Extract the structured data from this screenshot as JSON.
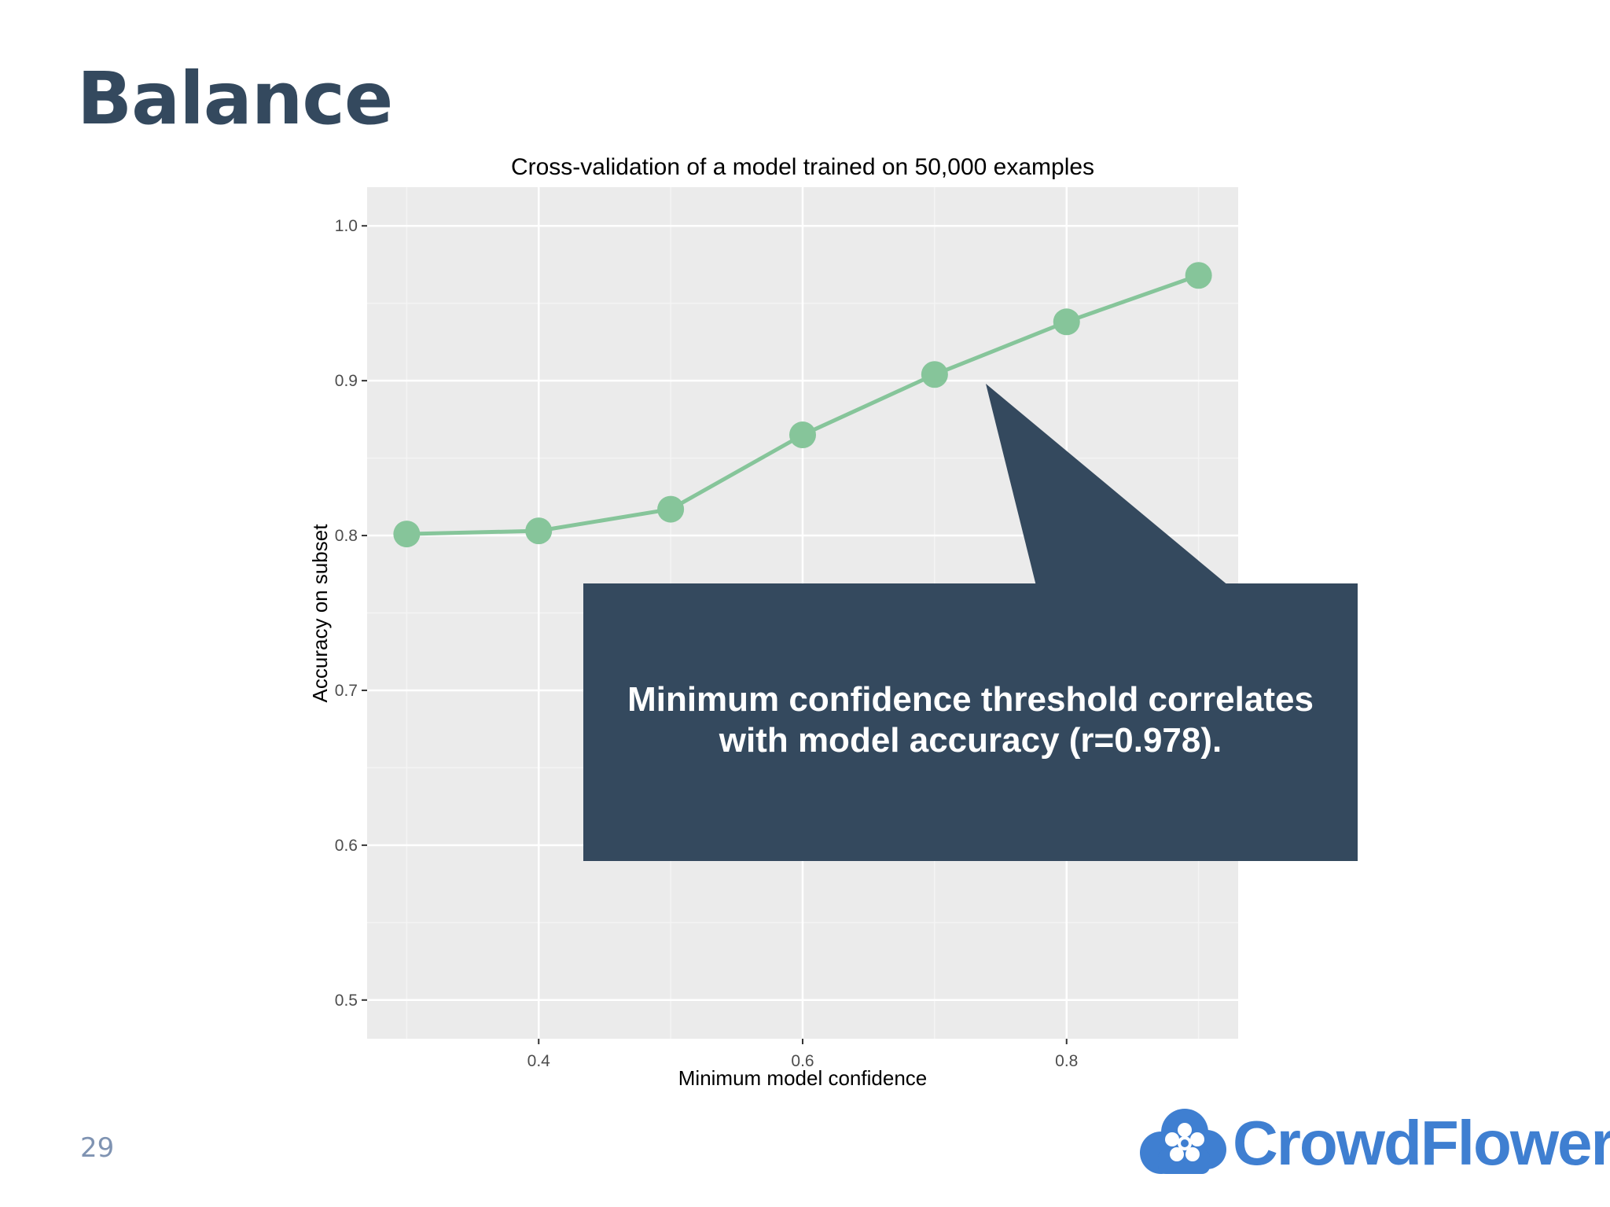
{
  "slide": {
    "title": "Balance",
    "page_number": "29"
  },
  "callout": {
    "line1": "Minimum confidence threshold correlates",
    "line2": "with model accuracy (r=0.978)."
  },
  "logo": {
    "text": "CrowdFlower",
    "icon": "cloud-flower-icon"
  },
  "colors": {
    "title": "#34495e",
    "callout_bg": "#34495e",
    "series": "#86c59a",
    "plot_bg": "#ebebeb",
    "logo": "#3f7fd1"
  },
  "chart_data": {
    "type": "line",
    "title": "Cross-validation of a model trained on 50,000 examples",
    "xlabel": "Minimum model confidence",
    "ylabel": "Accuracy on subset",
    "xlim": [
      0.27,
      0.93
    ],
    "ylim": [
      0.475,
      1.025
    ],
    "xticks": [
      0.4,
      0.6,
      0.8
    ],
    "xtick_labels": [
      "0.4",
      "0.6",
      "0.8"
    ],
    "yticks": [
      0.5,
      0.6,
      0.7,
      0.8,
      0.9,
      1.0
    ],
    "ytick_labels": [
      "0.5",
      "0.6",
      "0.7",
      "0.8",
      "0.9",
      "1.0"
    ],
    "grid": true,
    "series": [
      {
        "x": [
          0.3,
          0.4,
          0.5,
          0.6,
          0.7,
          0.8,
          0.9
        ],
        "y": [
          0.801,
          0.803,
          0.817,
          0.865,
          0.904,
          0.938,
          0.968
        ]
      }
    ]
  }
}
